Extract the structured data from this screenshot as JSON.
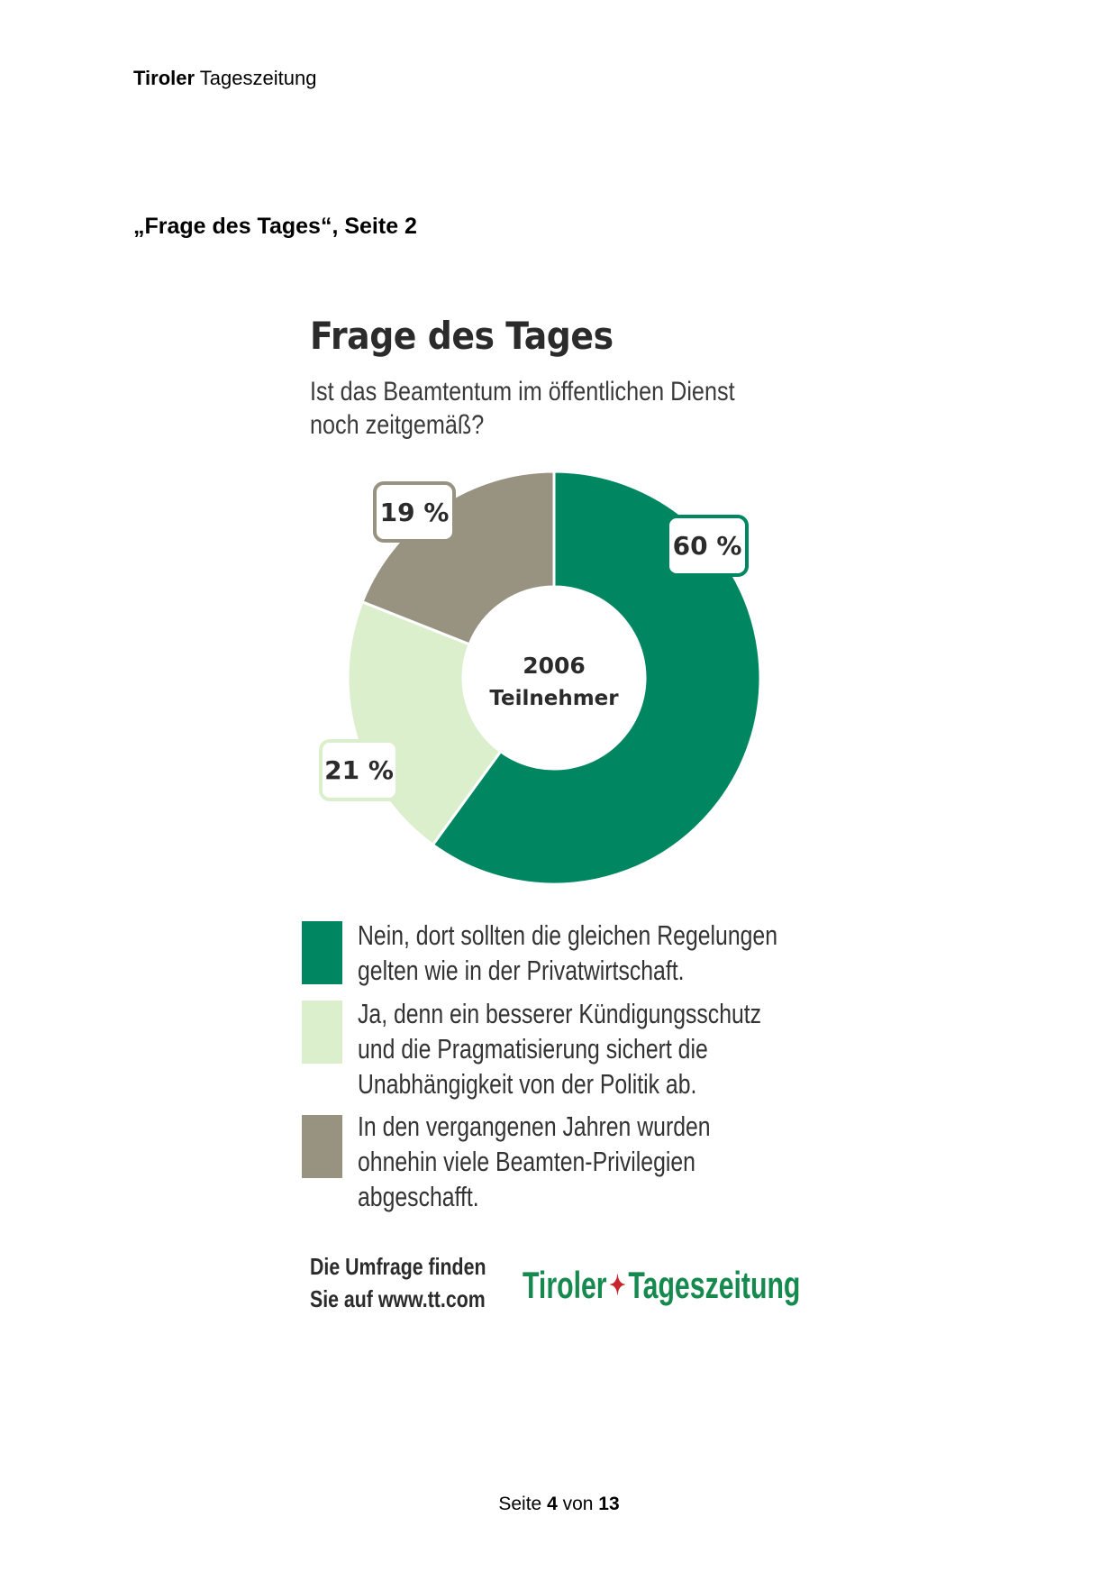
{
  "header": {
    "brand_bold": "Tiroler",
    "brand_rest": "Tageszeitung"
  },
  "reference": "„Frage des Tages“, Seite 2",
  "chart_data": {
    "type": "pie",
    "title": "Frage des Tages",
    "subtitle_lines": [
      "Ist das Beamtentum im öffentlichen Dienst",
      "noch zeitgemäß?"
    ],
    "center_label": {
      "number": "2006",
      "text": "Teilnehmer"
    },
    "slices": [
      {
        "value": 60,
        "label": "60 %",
        "color": "#008661",
        "legend": [
          "Nein, dort sollten die gleichen Regelungen",
          "gelten wie in der Privatwirtschaft."
        ]
      },
      {
        "value": 21,
        "label": "21 %",
        "color": "#dcefcc",
        "legend": [
          "Ja, denn ein besserer Kündigungsschutz",
          "und die Pragmatisierung sichert die",
          "Unabhängigkeit von der Politik ab."
        ]
      },
      {
        "value": 19,
        "label": "19 %",
        "color": "#989281",
        "legend": [
          "In den vergangenen Jahren wurden",
          "ohnehin viele Beamten-Privilegien",
          "abgeschafft."
        ]
      }
    ]
  },
  "footer": {
    "lines": [
      "Die Umfrage finden",
      "Sie auf www.tt.com"
    ],
    "logo_left": "Tiroler",
    "logo_right": "Tageszeitung"
  },
  "page": {
    "prefix": "Seite",
    "current": "4",
    "sep": "von",
    "total": "13"
  }
}
